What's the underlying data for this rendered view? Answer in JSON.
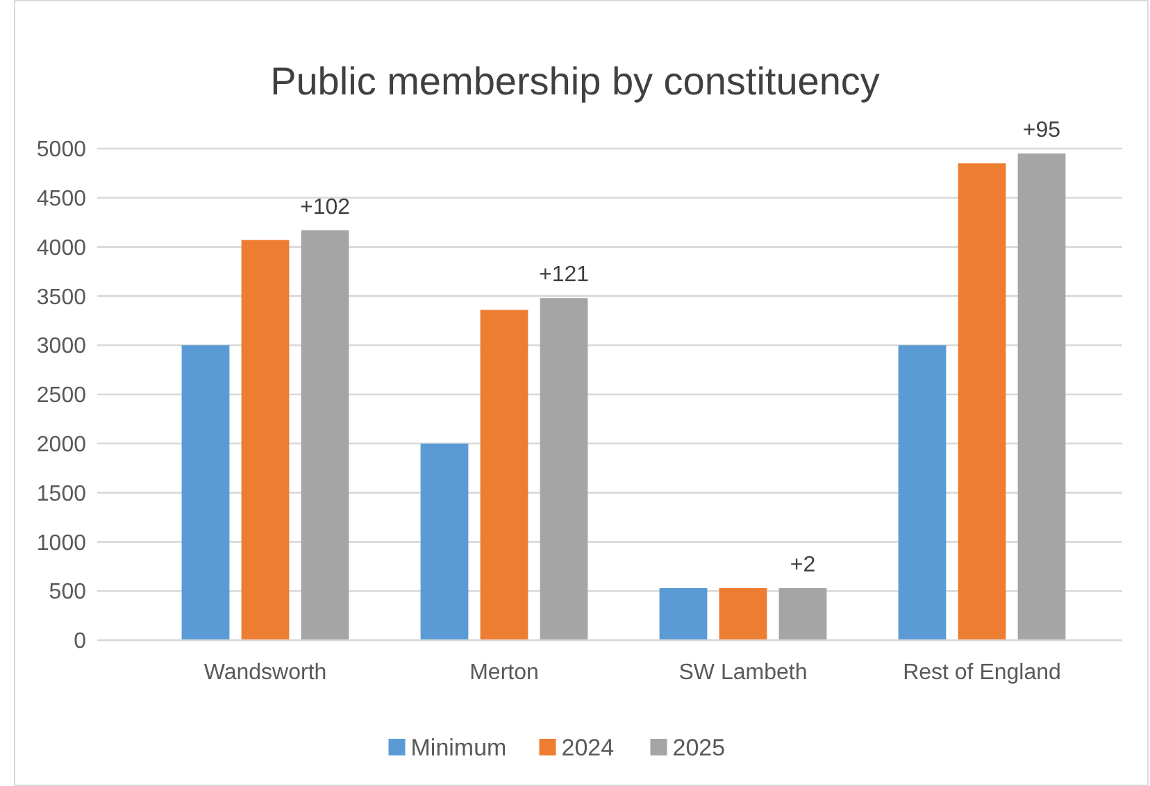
{
  "chart_data": {
    "type": "bar",
    "title": "Public membership by constituency",
    "categories": [
      "Wandsworth",
      "Merton",
      "SW Lambeth",
      "Rest of England"
    ],
    "series": [
      {
        "name": "Minimum",
        "color": "#5b9bd5",
        "values": [
          3000,
          2000,
          530,
          3000
        ]
      },
      {
        "name": "2024",
        "color": "#ed7d31",
        "values": [
          4070,
          3360,
          530,
          4850
        ]
      },
      {
        "name": "2025",
        "color": "#a5a5a5",
        "values": [
          4170,
          3480,
          530,
          4950
        ]
      }
    ],
    "annotations": [
      "+102",
      "+121",
      "+2",
      "+95"
    ],
    "ylim": [
      0,
      5000
    ],
    "yticks": [
      0,
      500,
      1000,
      1500,
      2000,
      2500,
      3000,
      3500,
      4000,
      4500,
      5000
    ],
    "grid": "y",
    "legend": "bottom"
  }
}
